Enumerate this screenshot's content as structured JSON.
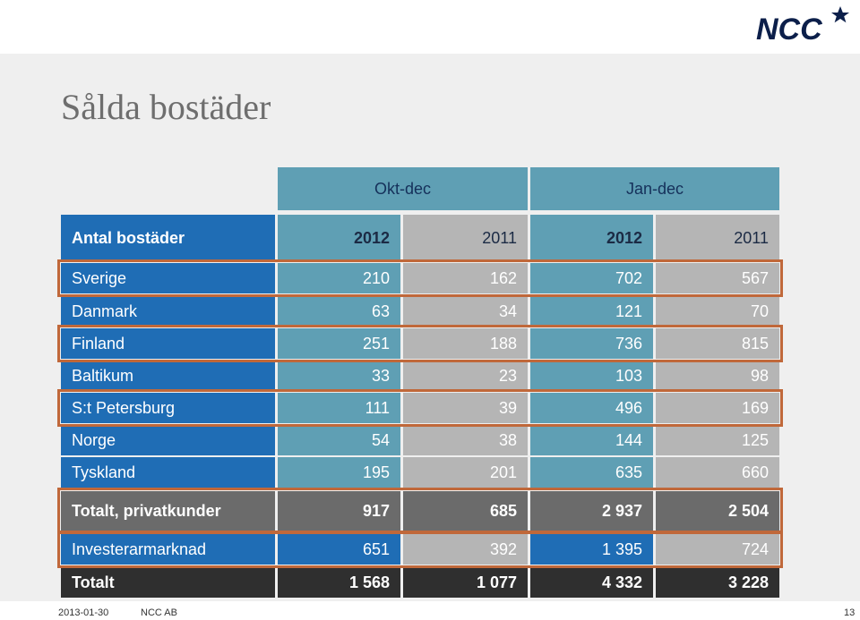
{
  "title": "Sålda bostäder",
  "logo_text": "NCC",
  "group_headers": [
    "Okt-dec",
    "Jan-dec"
  ],
  "row_header": {
    "label": "Antal bostäder",
    "years": [
      "2012",
      "2011",
      "2012",
      "2011"
    ]
  },
  "rows": [
    {
      "label": "Sverige",
      "values": [
        "210",
        "162",
        "702",
        "567"
      ]
    },
    {
      "label": "Danmark",
      "values": [
        "63",
        "34",
        "121",
        "70"
      ]
    },
    {
      "label": "Finland",
      "values": [
        "251",
        "188",
        "736",
        "815"
      ]
    },
    {
      "label": "Baltikum",
      "values": [
        "33",
        "23",
        "103",
        "98"
      ]
    },
    {
      "label": "S:t Petersburg",
      "values": [
        "111",
        "39",
        "496",
        "169"
      ]
    },
    {
      "label": "Norge",
      "values": [
        "54",
        "38",
        "144",
        "125"
      ]
    },
    {
      "label": "Tyskland",
      "values": [
        "195",
        "201",
        "635",
        "660"
      ]
    },
    {
      "label": "Totalt, privatkunder",
      "values": [
        "917",
        "685",
        "2 937",
        "2 504"
      ]
    },
    {
      "label": "Investerarmarknad",
      "values": [
        "651",
        "392",
        "1 395",
        "724"
      ]
    },
    {
      "label": "Totalt",
      "values": [
        "1 568",
        "1 077",
        "4 332",
        "3 228"
      ]
    }
  ],
  "footer": {
    "date": "2013-01-30",
    "company": "NCC AB",
    "page": "13"
  },
  "colors": {
    "teal": "#5f9fb4",
    "gray": "#b5b5b5",
    "blue": "#1f6db5",
    "highlight": "#c0683a"
  }
}
